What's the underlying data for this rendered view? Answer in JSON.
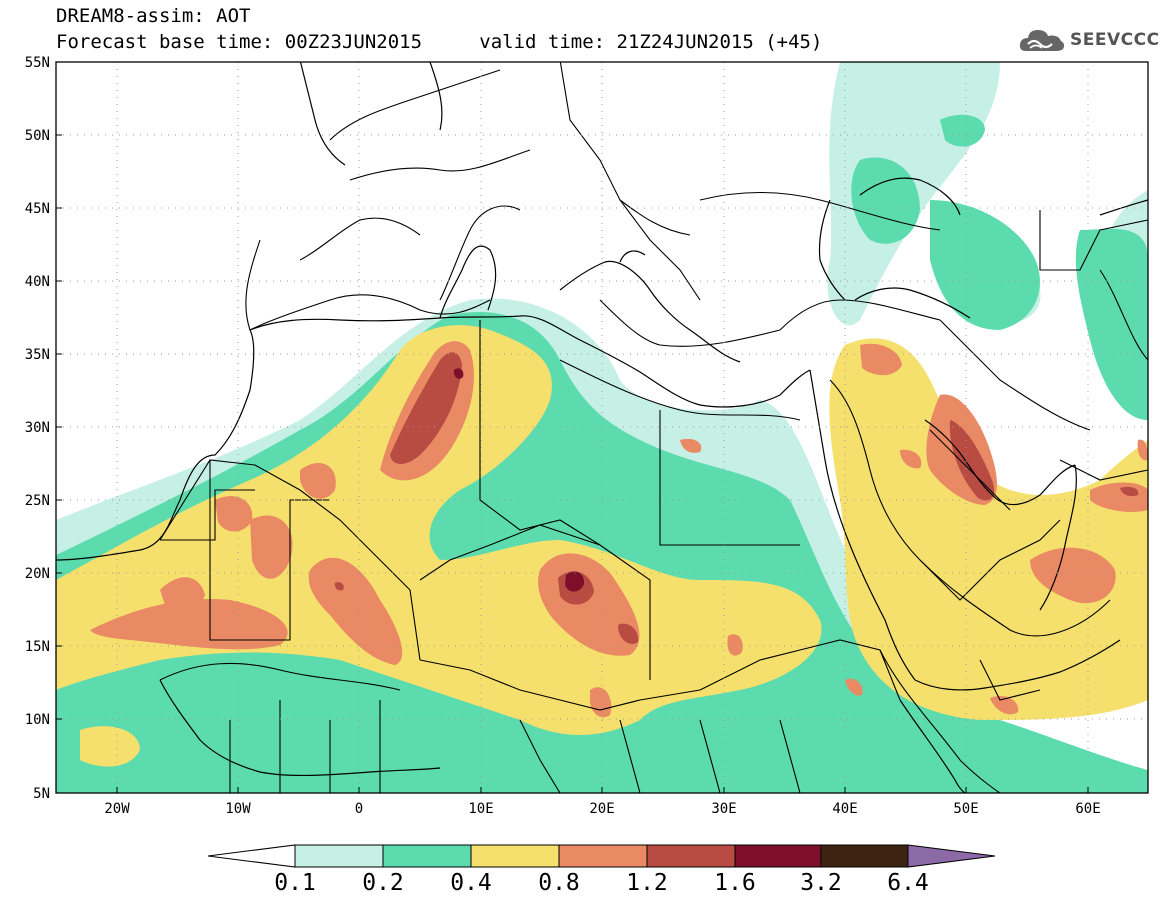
{
  "header": {
    "title": "DREAM8-assim: AOT",
    "base_time": "Forecast base time: 00Z23JUN2015",
    "valid_time": "valid time: 21Z24JUN2015 (+45)"
  },
  "logo": {
    "text": "SEEVCCC",
    "icon": "cloud-icon"
  },
  "map": {
    "region": "North Africa / Middle East",
    "lat_labels": [
      "55N",
      "50N",
      "45N",
      "40N",
      "35N",
      "30N",
      "25N",
      "20N",
      "15N",
      "10N",
      "5N"
    ],
    "lon_labels": [
      "20W",
      "10W",
      "0",
      "10E",
      "20E",
      "30E",
      "40E",
      "50E",
      "60E"
    ]
  },
  "colorbar": {
    "labels": [
      "0.1",
      "0.2",
      "0.4",
      "0.8",
      "1.2",
      "1.6",
      "3.2",
      "6.4"
    ],
    "colors": [
      "#ffffff",
      "#c6f0e6",
      "#5cdcae",
      "#f5e06e",
      "#e98a64",
      "#b84b42",
      "#7d0f2a",
      "#3d2412",
      "#8c6aa8"
    ]
  }
}
